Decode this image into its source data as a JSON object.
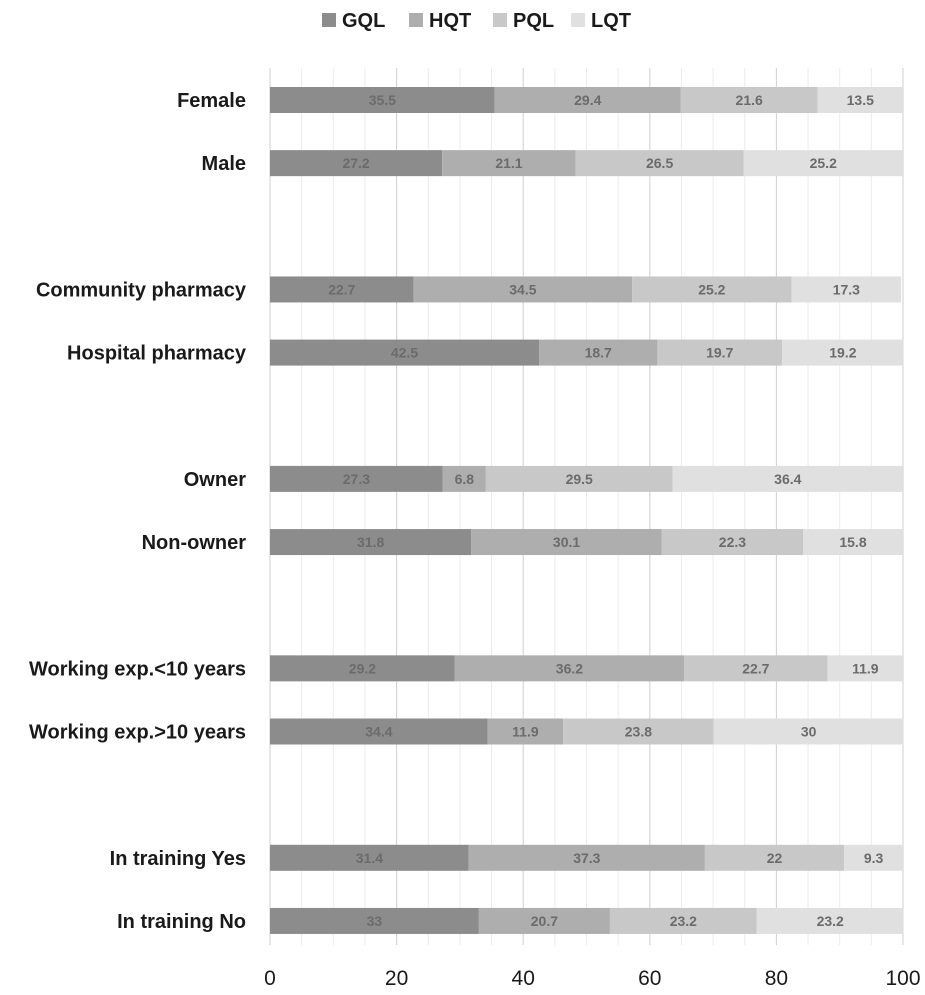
{
  "chart_data": {
    "type": "bar",
    "orientation": "horizontal",
    "stacked": true,
    "title": "",
    "xlabel": "",
    "ylabel": "",
    "xlim": [
      0,
      100
    ],
    "xticks": [
      0,
      20,
      40,
      60,
      80,
      100
    ],
    "grid": true,
    "legend_position": "top-center",
    "categories": [
      "Female",
      "Male",
      "",
      "Community pharmacy",
      "Hospital pharmacy",
      "",
      "Owner",
      "Non-owner",
      "",
      "Working exp.<10 years",
      "Working exp.>10 years",
      "",
      "In training Yes",
      "In training No"
    ],
    "series": [
      {
        "name": "GQL",
        "color": "#8c8c8c",
        "values": [
          35.5,
          27.2,
          null,
          22.7,
          42.5,
          null,
          27.3,
          31.8,
          null,
          29.2,
          34.4,
          null,
          31.4,
          33
        ]
      },
      {
        "name": "HQT",
        "color": "#aeaeae",
        "values": [
          29.4,
          21.1,
          null,
          34.5,
          18.7,
          null,
          6.8,
          30.1,
          null,
          36.2,
          11.9,
          null,
          37.3,
          20.7
        ]
      },
      {
        "name": "PQL",
        "color": "#c8c8c8",
        "values": [
          21.6,
          26.5,
          null,
          25.2,
          19.7,
          null,
          29.5,
          22.3,
          null,
          22.7,
          23.8,
          null,
          22,
          23.2
        ]
      },
      {
        "name": "LQT",
        "color": "#e0e0e0",
        "values": [
          13.5,
          25.2,
          null,
          17.3,
          19.2,
          null,
          36.4,
          15.8,
          null,
          11.9,
          30,
          null,
          9.3,
          23.2
        ]
      }
    ]
  }
}
